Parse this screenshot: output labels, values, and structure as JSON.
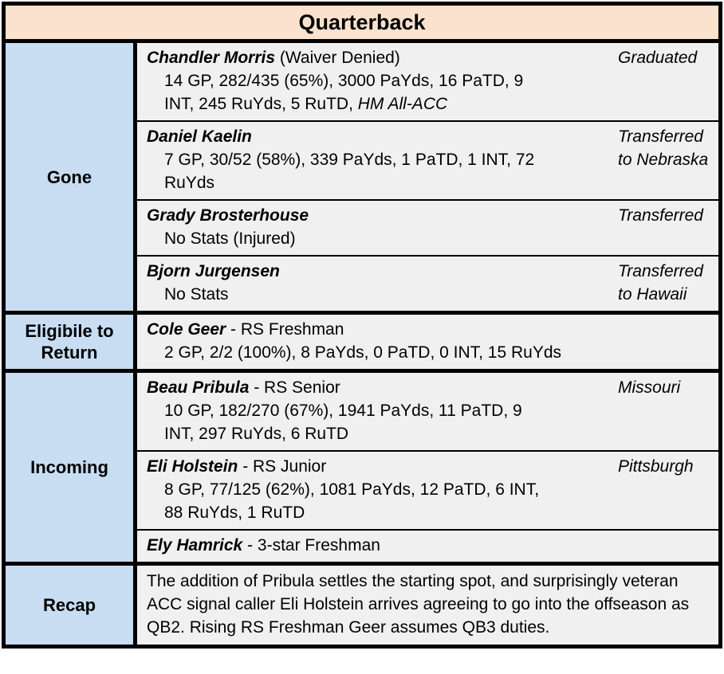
{
  "title": "Quarterback",
  "colors": {
    "header_bg": "#fbe2ce",
    "label_bg": "#c8ddf1",
    "content_bg": "#f0f0f0",
    "border": "#000000"
  },
  "sections": [
    {
      "label": "Gone",
      "players": [
        {
          "name": "Chandler Morris",
          "name_suffix": " (Waiver Denied)",
          "status": "Graduated",
          "stats": [
            "14 GP, 282/435 (65%), 3000 PaYds, 16 PaTD, 9",
            "INT, 245 RuYds, 5 RuTD, "
          ],
          "stats_italic_suffix": "HM All-ACC"
        },
        {
          "name": "Daniel Kaelin",
          "name_suffix": "",
          "status": "Transferred to Nebraska",
          "stats": [
            "7 GP, 30/52 (58%), 339 PaYds, 1 PaTD, 1 INT, 72",
            "RuYds"
          ]
        },
        {
          "name": "Grady Brosterhouse",
          "name_suffix": "",
          "status": "Transferred",
          "stats": [
            "No Stats (Injured)"
          ]
        },
        {
          "name": "Bjorn Jurgensen",
          "name_suffix": "",
          "status": "Transferred to Hawaii",
          "stats": [
            "No Stats"
          ]
        }
      ]
    },
    {
      "label": "Eligibile to Return",
      "players": [
        {
          "name": "Cole Geer",
          "name_suffix": " - RS Freshman",
          "status": "",
          "stats": [
            "2 GP, 2/2 (100%), 8 PaYds, 0 PaTD, 0 INT, 15 RuYds"
          ]
        }
      ]
    },
    {
      "label": "Incoming",
      "players": [
        {
          "name": "Beau Pribula",
          "name_suffix": " - RS Senior",
          "status": "Missouri",
          "stats": [
            "10 GP, 182/270 (67%), 1941 PaYds, 11 PaTD, 9",
            "INT, 297 RuYds, 6 RuTD"
          ]
        },
        {
          "name": "Eli Holstein",
          "name_suffix": " - RS Junior",
          "status": "Pittsburgh",
          "stats": [
            "8 GP, 77/125 (62%), 1081 PaYds, 12 PaTD, 6 INT,",
            "88 RuYds, 1 RuTD"
          ]
        },
        {
          "name": "Ely Hamrick",
          "name_suffix": " - 3-star Freshman",
          "status": "",
          "stats": []
        }
      ]
    },
    {
      "label": "Recap",
      "recap_text": "The addition of Pribula settles the starting spot, and surprisingly veteran ACC signal caller Eli Holstein arrives agreeing to go into the offseason as QB2. Rising RS Freshman Geer assumes QB3 duties."
    }
  ]
}
